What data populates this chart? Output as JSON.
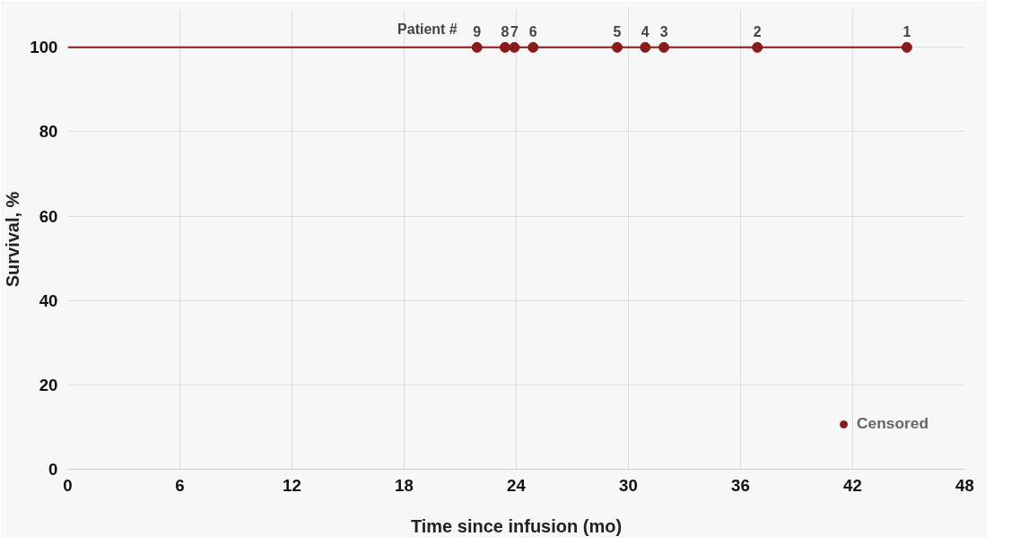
{
  "chart_data": {
    "type": "scatter",
    "xlabel": "Time since infusion (mo)",
    "ylabel": "Survival, %",
    "xlim": [
      0,
      48
    ],
    "xticks": [
      0,
      6,
      12,
      18,
      24,
      30,
      36,
      42,
      48
    ],
    "ylim": [
      0,
      100
    ],
    "yticks": [
      0,
      20,
      40,
      60,
      80,
      100
    ],
    "grid": true,
    "legend": "bottom right",
    "marker": "circle",
    "series": [
      {
        "type": "step",
        "marker": "none",
        "color": "#8b1a1a",
        "x": [
          0,
          44.9
        ],
        "values": [
          100,
          100
        ]
      },
      {
        "name": "Censored",
        "color": "#8b1a1a",
        "x": [
          21.9,
          23.4,
          23.9,
          24.9,
          29.4,
          30.9,
          31.9,
          36.9,
          44.9
        ],
        "values": [
          100,
          100,
          100,
          100,
          100,
          100,
          100,
          100,
          100
        ]
      }
    ],
    "annotations": [
      "Patient #",
      {
        "text": "9",
        "x": 21.9,
        "y": 100
      },
      {
        "text": "8",
        "x": 23.4,
        "y": 100
      },
      {
        "text": "7",
        "x": 23.9,
        "y": 100
      },
      {
        "text": "6",
        "x": 24.9,
        "y": 100
      },
      {
        "text": "5",
        "x": 29.4,
        "y": 100
      },
      {
        "text": "4",
        "x": 30.9,
        "y": 100
      },
      {
        "text": "3",
        "x": 31.9,
        "y": 100
      },
      {
        "text": "2",
        "x": 36.9,
        "y": 100
      },
      {
        "text": "1",
        "x": 44.9,
        "y": 100
      }
    ]
  }
}
